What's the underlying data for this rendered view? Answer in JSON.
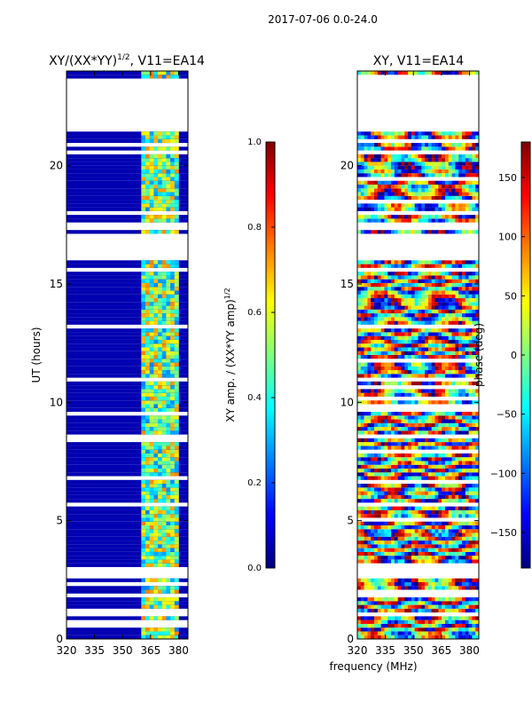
{
  "figure": {
    "suptitle": "2017-07-06 0.0-24.0",
    "xlabel_shared": "frequency (MHz)"
  },
  "chart_data": [
    {
      "type": "heatmap",
      "title_main": "XY/(XX*YY)",
      "title_sup": "1/2",
      "title_tail": ", V11=EA14",
      "xlabel": "",
      "ylabel": "UT (hours)",
      "xlim": [
        320,
        385
      ],
      "ylim": [
        0,
        24
      ],
      "xticks": [
        320,
        335,
        350,
        365,
        380
      ],
      "yticks": [
        0,
        5,
        10,
        15,
        20
      ],
      "colorbar": {
        "label_main": "XY amp. / (XX*YY amp)",
        "label_sup": "1/2",
        "range": [
          0.0,
          1.0
        ],
        "ticks": [
          "0.0",
          "0.2",
          "0.4",
          "0.6",
          "0.8",
          "1.0"
        ],
        "colormap": "jet"
      },
      "data_gaps_hours": [
        [
          21.4,
          23.6
        ],
        [
          17.3,
          17.6
        ],
        [
          16.0,
          17.1
        ],
        [
          2.6,
          3.1
        ],
        [
          0.5,
          0.6
        ]
      ],
      "high_band_mhz": [
        360,
        380
      ],
      "background_value": 0.05
    },
    {
      "type": "heatmap",
      "title_main": "XY, V11=EA14",
      "xlabel": "",
      "ylabel": "",
      "xlim": [
        320,
        385
      ],
      "ylim": [
        0,
        24
      ],
      "xticks": [
        320,
        335,
        350,
        365,
        380
      ],
      "yticks": [
        0,
        5,
        10,
        15,
        20
      ],
      "colorbar": {
        "label_main": "phase (deg)",
        "range": [
          -180,
          180
        ],
        "ticks": [
          "−150",
          "−100",
          "−50",
          "0",
          "50",
          "100",
          "150"
        ],
        "tick_values": [
          -150,
          -100,
          -50,
          0,
          50,
          100,
          150
        ],
        "colormap": "jet"
      },
      "data_gaps_hours": [
        [
          21.4,
          23.6
        ],
        [
          17.3,
          17.6
        ],
        [
          16.0,
          17.1
        ],
        [
          2.6,
          3.1
        ]
      ]
    }
  ],
  "colors": {
    "jet": [
      "#00007f",
      "#0000ff",
      "#007fff",
      "#00ffff",
      "#7fff7f",
      "#ffff00",
      "#ff7f00",
      "#ff0000",
      "#7f0000"
    ]
  }
}
